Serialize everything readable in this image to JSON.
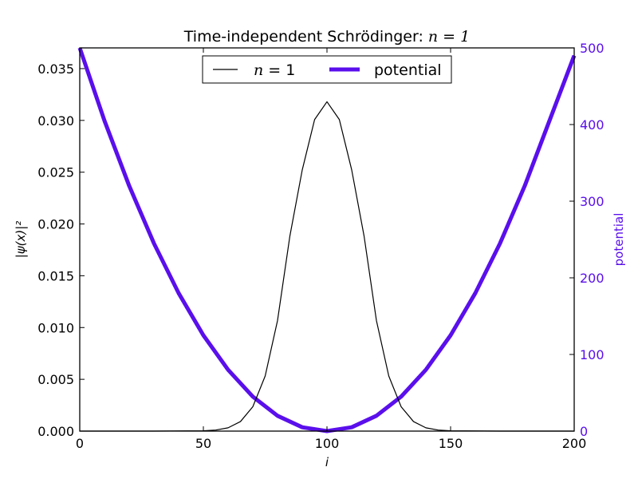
{
  "chart_data": {
    "type": "line",
    "title": "Time-independent Schrödinger: n = 1",
    "title_prefix": "Time-independent Schrödinger: ",
    "title_math": "n = 1",
    "xlabel": "i",
    "ylabel_left": "|ψ(x)|²",
    "ylabel_right": "potential",
    "xlim": [
      0,
      200
    ],
    "ylim_left": [
      0,
      0.037
    ],
    "ylim_right": [
      0,
      500
    ],
    "x_ticks": [
      "0",
      "50",
      "100",
      "150",
      "200"
    ],
    "y_left_ticks": [
      "0.000",
      "0.005",
      "0.010",
      "0.015",
      "0.020",
      "0.025",
      "0.030",
      "0.035"
    ],
    "y_right_ticks": [
      "0",
      "100",
      "200",
      "300",
      "400",
      "500"
    ],
    "grid": false,
    "legend_placement": "top-center",
    "legend": [
      {
        "label_math": "n",
        "label_rest": " = 1",
        "series": "psi"
      },
      {
        "label": "potential",
        "series": "potential"
      }
    ],
    "series": [
      {
        "id": "psi",
        "axis": "left",
        "color": "#000000",
        "x": [
          0,
          30,
          50,
          55,
          60,
          65,
          70,
          75,
          80,
          85,
          90,
          95,
          100,
          105,
          110,
          115,
          120,
          125,
          130,
          135,
          140,
          145,
          150,
          170,
          200
        ],
        "y": [
          0.0,
          0.0,
          3e-05,
          0.0001,
          0.00032,
          0.00092,
          0.00235,
          0.00532,
          0.01068,
          0.01884,
          0.02522,
          0.03008,
          0.0318,
          0.03008,
          0.02522,
          0.01884,
          0.01068,
          0.00532,
          0.00235,
          0.00092,
          0.00032,
          0.0001,
          3e-05,
          0.0,
          0.0
        ]
      },
      {
        "id": "potential",
        "name": "potential",
        "axis": "right",
        "color": "#5a0fec",
        "x": [
          0,
          10,
          20,
          30,
          40,
          50,
          60,
          70,
          80,
          90,
          100,
          110,
          120,
          130,
          140,
          150,
          160,
          170,
          180,
          190,
          200
        ],
        "y": [
          500,
          405,
          320,
          245,
          180,
          125,
          80,
          45,
          20,
          5,
          0,
          5,
          20,
          45,
          80,
          125,
          180,
          245,
          320,
          405,
          490
        ]
      }
    ]
  }
}
